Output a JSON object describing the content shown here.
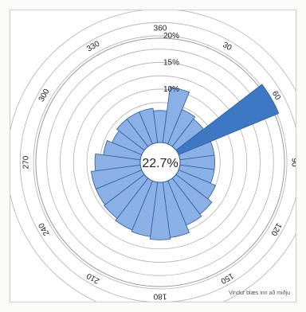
{
  "chart_data": {
    "type": "polar-bar",
    "title": "",
    "calm_percent_label": "22.7%",
    "footnote": "Vindur blæs inn að miðju",
    "direction_labels": [
      "360",
      "30",
      "60",
      "90",
      "120",
      "150",
      "180",
      "210",
      "240",
      "270",
      "300",
      "330"
    ],
    "ring_labels": [
      "10%",
      "15%",
      "20%"
    ],
    "radial_unit": "percent",
    "ring_values": [
      7.5,
      10,
      12.5,
      15,
      17.5,
      20,
      22.5,
      25
    ],
    "sectors": [
      {
        "direction": 0,
        "value": 6.0
      },
      {
        "direction": 15,
        "value": 10.5
      },
      {
        "direction": 30,
        "value": 7.0
      },
      {
        "direction": 45,
        "value": 6.5
      },
      {
        "direction": 60,
        "value": 20.3
      },
      {
        "direction": 75,
        "value": 6.5
      },
      {
        "direction": 90,
        "value": 6.5
      },
      {
        "direction": 105,
        "value": 6.5
      },
      {
        "direction": 120,
        "value": 7.5
      },
      {
        "direction": 135,
        "value": 8.5
      },
      {
        "direction": 150,
        "value": 9.0
      },
      {
        "direction": 165,
        "value": 10.5
      },
      {
        "direction": 180,
        "value": 10.8
      },
      {
        "direction": 195,
        "value": 10.3
      },
      {
        "direction": 210,
        "value": 10.0
      },
      {
        "direction": 225,
        "value": 9.5
      },
      {
        "direction": 240,
        "value": 9.3
      },
      {
        "direction": 255,
        "value": 9.3
      },
      {
        "direction": 270,
        "value": 8.5
      },
      {
        "direction": 285,
        "value": 7.0
      },
      {
        "direction": 300,
        "value": 6.0
      },
      {
        "direction": 315,
        "value": 6.5
      },
      {
        "direction": 330,
        "value": 6.5
      },
      {
        "direction": 345,
        "value": 6.5
      }
    ],
    "highlight_direction": 60,
    "colors": {
      "sector": "#8ab0e6",
      "highlight": "#3f78c2",
      "sector_stroke": "#2f5c9e",
      "ring": "#b8b8b8"
    }
  }
}
